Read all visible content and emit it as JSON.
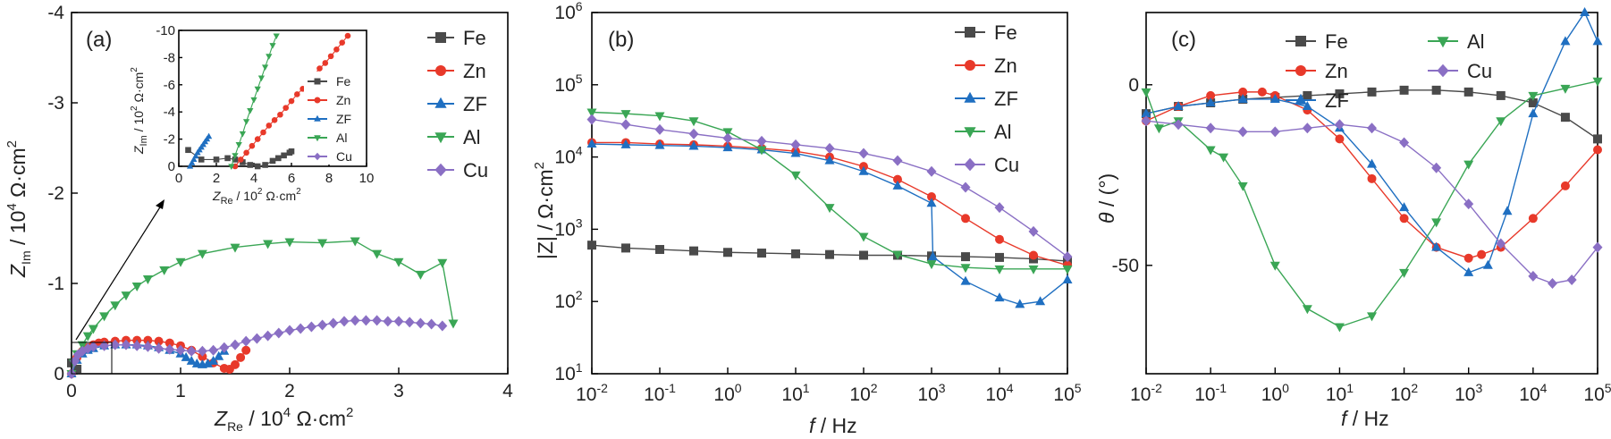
{
  "colors": {
    "Fe": "#4a4a4a",
    "Zn": "#e8392a",
    "ZF": "#1f6fc1",
    "Al": "#3aa655",
    "Cu": "#8a6fc4"
  },
  "markers": {
    "Fe": "square",
    "Zn": "circle",
    "ZF": "triangle-up",
    "Al": "triangle-down",
    "Cu": "diamond"
  },
  "chart_data": [
    {
      "type": "scatter",
      "panel_label": "(a)",
      "xlabel_main": "Z",
      "xlabel_sub": "Re",
      "xlabel_rest": " / 10",
      "xlabel_sup": "4",
      "xlabel_unit": " Ω·cm",
      "xlabel_unit_sup": "2",
      "ylabel_main": "Z",
      "ylabel_sub": "Im",
      "ylabel_rest": " / 10",
      "ylabel_sup": "4",
      "ylabel_unit": " Ω·cm",
      "ylabel_unit_sup": "2",
      "xlim": [
        0,
        4
      ],
      "ylim": [
        0,
        -4
      ],
      "x_ticks": [
        "0",
        "1",
        "2",
        "3",
        "4"
      ],
      "y_ticks": [
        "0",
        "-1",
        "-2",
        "-3",
        "-4"
      ],
      "legend": [
        "Fe",
        "Zn",
        "ZF",
        "Al",
        "Cu"
      ],
      "series": [
        {
          "name": "Fe",
          "x": [
            0.0,
            0.05
          ],
          "y": [
            -0.12,
            -0.05
          ]
        },
        {
          "name": "Zn",
          "x": [
            0.0,
            0.05,
            0.1,
            0.15,
            0.2,
            0.25,
            0.3,
            0.4,
            0.5,
            0.6,
            0.7,
            0.8,
            0.9,
            1.0,
            1.1,
            1.2,
            1.3,
            1.4,
            1.45,
            1.5,
            1.55,
            1.6
          ],
          "y": [
            0,
            -0.18,
            -0.25,
            -0.29,
            -0.32,
            -0.34,
            -0.35,
            -0.36,
            -0.37,
            -0.37,
            -0.37,
            -0.36,
            -0.34,
            -0.31,
            -0.26,
            -0.19,
            -0.12,
            -0.06,
            -0.05,
            -0.1,
            -0.18,
            -0.26
          ]
        },
        {
          "name": "ZF",
          "x": [
            0.0,
            0.05,
            0.1,
            0.15,
            0.2,
            0.3,
            0.4,
            0.5,
            0.6,
            0.7,
            0.8,
            0.9,
            1.0,
            1.05,
            1.1,
            1.15,
            1.2,
            1.25,
            1.3,
            1.35,
            1.4
          ],
          "y": [
            0,
            -0.15,
            -0.22,
            -0.26,
            -0.28,
            -0.31,
            -0.32,
            -0.32,
            -0.32,
            -0.31,
            -0.29,
            -0.26,
            -0.22,
            -0.18,
            -0.14,
            -0.11,
            -0.1,
            -0.11,
            -0.14,
            -0.19,
            -0.25
          ]
        },
        {
          "name": "Al",
          "x": [
            0.0,
            0.02,
            0.05,
            0.1,
            0.15,
            0.2,
            0.3,
            0.4,
            0.5,
            0.6,
            0.7,
            0.85,
            1.0,
            1.2,
            1.5,
            1.8,
            2.0,
            2.3,
            2.6,
            2.8,
            3.0,
            3.2,
            3.4,
            3.5
          ],
          "y": [
            0,
            -0.12,
            -0.22,
            -0.32,
            -0.42,
            -0.5,
            -0.64,
            -0.76,
            -0.87,
            -0.97,
            -1.05,
            -1.15,
            -1.24,
            -1.33,
            -1.4,
            -1.44,
            -1.46,
            -1.45,
            -1.47,
            -1.33,
            -1.24,
            -1.1,
            -1.23,
            -0.56
          ]
        },
        {
          "name": "Cu",
          "x": [
            0.0,
            0.03,
            0.06,
            0.1,
            0.15,
            0.2,
            0.3,
            0.4,
            0.5,
            0.6,
            0.7,
            0.8,
            0.9,
            1.0,
            1.1,
            1.2,
            1.3,
            1.4,
            1.5,
            1.6,
            1.7,
            1.8,
            1.9,
            2.0,
            2.1,
            2.2,
            2.3,
            2.4,
            2.5,
            2.6,
            2.7,
            2.8,
            2.9,
            3.0,
            3.1,
            3.2,
            3.3,
            3.4
          ],
          "y": [
            0,
            -0.14,
            -0.21,
            -0.25,
            -0.28,
            -0.3,
            -0.31,
            -0.32,
            -0.32,
            -0.31,
            -0.3,
            -0.28,
            -0.27,
            -0.26,
            -0.25,
            -0.25,
            -0.26,
            -0.29,
            -0.32,
            -0.36,
            -0.39,
            -0.42,
            -0.45,
            -0.48,
            -0.5,
            -0.52,
            -0.54,
            -0.56,
            -0.58,
            -0.59,
            -0.59,
            -0.59,
            -0.58,
            -0.58,
            -0.57,
            -0.56,
            -0.55,
            -0.53
          ]
        }
      ],
      "inset": {
        "xlabel_main": "Z",
        "xlabel_sub": "Re",
        "xlabel_rest": " / 10",
        "xlabel_sup": "2",
        "xlabel_unit": " Ω·cm",
        "xlabel_unit_sup": "2",
        "ylabel_main": "Z",
        "ylabel_sub": "Im",
        "ylabel_rest": " / 10",
        "ylabel_sup": "2",
        "ylabel_unit": " Ω·cm",
        "ylabel_unit_sup": "2",
        "xlim": [
          0,
          10
        ],
        "ylim": [
          0,
          -10
        ],
        "x_ticks": [
          "0",
          "2",
          "4",
          "6",
          "8",
          "10"
        ],
        "y_ticks": [
          "0",
          "-2",
          "-4",
          "-6",
          "-8",
          "-10"
        ],
        "legend": [
          "Fe",
          "Zn",
          "ZF",
          "Al",
          "Cu"
        ],
        "series": [
          {
            "name": "Fe",
            "x": [
              0.5,
              1.2,
              2.0,
              2.6,
              3.0,
              3.4,
              3.8,
              4.2,
              4.6,
              5.0,
              5.3,
              5.6,
              5.9,
              6.0
            ],
            "y": [
              -1.2,
              -0.5,
              -0.5,
              -0.6,
              -0.5,
              -0.3,
              -0.1,
              0.0,
              -0.1,
              -0.4,
              -0.6,
              -0.8,
              -1.0,
              -1.1
            ]
          },
          {
            "name": "Zn",
            "x": [
              3.0,
              3.3,
              3.6,
              3.9,
              4.2,
              4.5,
              4.8,
              5.1,
              5.4,
              5.7,
              6.0,
              6.3,
              6.6,
              6.9,
              7.2,
              7.5,
              7.8,
              8.1,
              8.4,
              8.7,
              9.0
            ],
            "y": [
              0,
              -0.5,
              -1.0,
              -1.5,
              -2.0,
              -2.5,
              -3.0,
              -3.4,
              -3.8,
              -4.3,
              -4.8,
              -5.3,
              -5.7,
              -6.2,
              -6.7,
              -7.2,
              -7.6,
              -8.1,
              -8.6,
              -9.1,
              -9.6
            ]
          },
          {
            "name": "ZF",
            "x": [
              0.6,
              0.7,
              0.8,
              0.9,
              1.0,
              1.1,
              1.2,
              1.3,
              1.4,
              1.5,
              1.6
            ],
            "y": [
              0,
              -0.25,
              -0.5,
              -0.75,
              -1.0,
              -1.2,
              -1.4,
              -1.6,
              -1.8,
              -2.0,
              -2.2
            ]
          },
          {
            "name": "Al",
            "x": [
              2.8,
              3.0,
              3.2,
              3.4,
              3.6,
              3.8,
              4.0,
              4.2,
              4.4,
              4.6,
              4.8,
              5.0,
              5.2
            ],
            "y": [
              0,
              -0.8,
              -1.6,
              -2.4,
              -3.3,
              -4.1,
              -4.9,
              -5.7,
              -6.5,
              -7.3,
              -8.1,
              -8.9,
              -9.6
            ]
          },
          {
            "name": "Cu",
            "x": [],
            "y": []
          }
        ]
      }
    },
    {
      "type": "scatter",
      "panel_label": "(b)",
      "xlabel_italic": "f",
      "xlabel_rest": " / Hz",
      "ylabel_text": "|Z| / Ω·cm",
      "ylabel_sup": "2",
      "x_log": true,
      "y_log": true,
      "xlim": [
        0.01,
        100000
      ],
      "ylim": [
        10,
        1000000
      ],
      "x_tick_base": "10",
      "x_tick_exps": [
        "-2",
        "-1",
        "0",
        "1",
        "2",
        "3",
        "4",
        "5"
      ],
      "y_tick_base": "10",
      "y_tick_exps": [
        "1",
        "2",
        "3",
        "4",
        "5",
        "6"
      ],
      "legend": [
        "Fe",
        "Zn",
        "ZF",
        "Al",
        "Cu"
      ],
      "series": [
        {
          "name": "Fe",
          "log_x": [
            -2,
            -1.5,
            -1,
            -0.5,
            0,
            0.5,
            1,
            1.5,
            2,
            2.5,
            3,
            3.5,
            4,
            4.5,
            5
          ],
          "log_y": [
            2.78,
            2.74,
            2.72,
            2.7,
            2.68,
            2.67,
            2.66,
            2.65,
            2.64,
            2.64,
            2.63,
            2.62,
            2.61,
            2.59,
            2.56
          ]
        },
        {
          "name": "Zn",
          "log_x": [
            -2,
            -1.5,
            -1,
            -0.5,
            0,
            0.5,
            1,
            1.5,
            2,
            2.5,
            3,
            3.5,
            4,
            4.5,
            5
          ],
          "log_y": [
            4.2,
            4.2,
            4.18,
            4.17,
            4.15,
            4.12,
            4.08,
            4.0,
            3.87,
            3.69,
            3.45,
            3.15,
            2.86,
            2.64,
            2.5
          ]
        },
        {
          "name": "ZF",
          "log_x": [
            -2,
            -1.5,
            -1,
            -0.5,
            0,
            0.5,
            1,
            1.5,
            2,
            2.5,
            3,
            3.02,
            3.5,
            4,
            4.3,
            4.6,
            5
          ],
          "log_y": [
            4.18,
            4.17,
            4.16,
            4.15,
            4.13,
            4.1,
            4.05,
            3.95,
            3.8,
            3.6,
            3.36,
            2.62,
            2.28,
            2.05,
            1.96,
            2.0,
            2.3
          ]
        },
        {
          "name": "Al",
          "log_x": [
            -2,
            -1.5,
            -1,
            -0.5,
            0,
            0.5,
            1,
            1.5,
            2,
            2.5,
            3,
            3.5,
            4,
            4.5,
            5
          ],
          "log_y": [
            4.62,
            4.6,
            4.57,
            4.5,
            4.35,
            4.1,
            3.75,
            3.3,
            2.9,
            2.65,
            2.52,
            2.47,
            2.45,
            2.45,
            2.45
          ]
        },
        {
          "name": "Cu",
          "log_x": [
            -2,
            -1.5,
            -1,
            -0.5,
            0,
            0.5,
            1,
            1.5,
            2,
            2.5,
            3,
            3.5,
            4,
            4.5,
            5
          ],
          "log_y": [
            4.52,
            4.45,
            4.38,
            4.32,
            4.26,
            4.22,
            4.17,
            4.12,
            4.05,
            3.95,
            3.8,
            3.58,
            3.3,
            2.97,
            2.62
          ]
        }
      ]
    },
    {
      "type": "scatter",
      "panel_label": "(c)",
      "xlabel_italic": "f",
      "xlabel_rest": " / Hz",
      "ylabel_italic": "θ",
      "ylabel_rest": " / (°)",
      "x_log": true,
      "xlim": [
        0.01,
        100000
      ],
      "ylim": [
        -80,
        20
      ],
      "x_tick_base": "10",
      "x_tick_exps": [
        "-2",
        "-1",
        "0",
        "1",
        "2",
        "3",
        "4",
        "5"
      ],
      "y_ticks": [
        "0",
        "-50"
      ],
      "y_tick_values": [
        0,
        -50
      ],
      "legend": [
        "Fe",
        "Zn",
        "ZF",
        "Al",
        "Cu"
      ],
      "series": [
        {
          "name": "Fe",
          "log_x": [
            -2,
            -1.5,
            -1,
            -0.5,
            0,
            0.5,
            1,
            1.5,
            2,
            2.5,
            3,
            3.5,
            4,
            4.5,
            5
          ],
          "y": [
            -8,
            -6,
            -5,
            -4,
            -3.5,
            -3,
            -2.5,
            -2,
            -1.5,
            -1.5,
            -2,
            -3,
            -5,
            -9,
            -15
          ]
        },
        {
          "name": "Zn",
          "log_x": [
            -2,
            -1.5,
            -1,
            -0.5,
            -0.2,
            0,
            0.5,
            1,
            1.5,
            2,
            2.5,
            3,
            3.2,
            3.5,
            4,
            4.5,
            5
          ],
          "y": [
            -10,
            -6,
            -3,
            -2,
            -2,
            -3,
            -7,
            -15,
            -26,
            -37,
            -45,
            -48,
            -47,
            -45,
            -37,
            -28,
            -18
          ]
        },
        {
          "name": "ZF",
          "log_x": [
            -2,
            -1.5,
            -1,
            -0.5,
            0,
            0.5,
            1,
            1.5,
            2,
            2.5,
            3,
            3.3,
            3.6,
            4,
            4.5,
            4.8,
            5
          ],
          "y": [
            -8,
            -6,
            -5,
            -4,
            -4,
            -6,
            -12,
            -22,
            -34,
            -45,
            -52,
            -50,
            -35,
            -8,
            12,
            20,
            12
          ]
        },
        {
          "name": "Al",
          "log_x": [
            -2,
            -1.8,
            -1.5,
            -1,
            -0.8,
            -0.5,
            0,
            0.5,
            1,
            1.5,
            2,
            2.5,
            3,
            3.5,
            4,
            4.5,
            5
          ],
          "y": [
            -2,
            -12,
            -10,
            -18,
            -20,
            -28,
            -50,
            -62,
            -67,
            -64,
            -52,
            -38,
            -22,
            -10,
            -3,
            -1,
            1
          ]
        },
        {
          "name": "Cu",
          "log_x": [
            -2,
            -1.5,
            -1,
            -0.5,
            0,
            0.5,
            1,
            1.5,
            2,
            2.5,
            3,
            3.5,
            4,
            4.3,
            4.6,
            5
          ],
          "y": [
            -10,
            -11,
            -12,
            -13,
            -13,
            -12,
            -11,
            -12,
            -16,
            -23,
            -33,
            -44,
            -53,
            -55,
            -54,
            -45
          ]
        }
      ]
    }
  ]
}
